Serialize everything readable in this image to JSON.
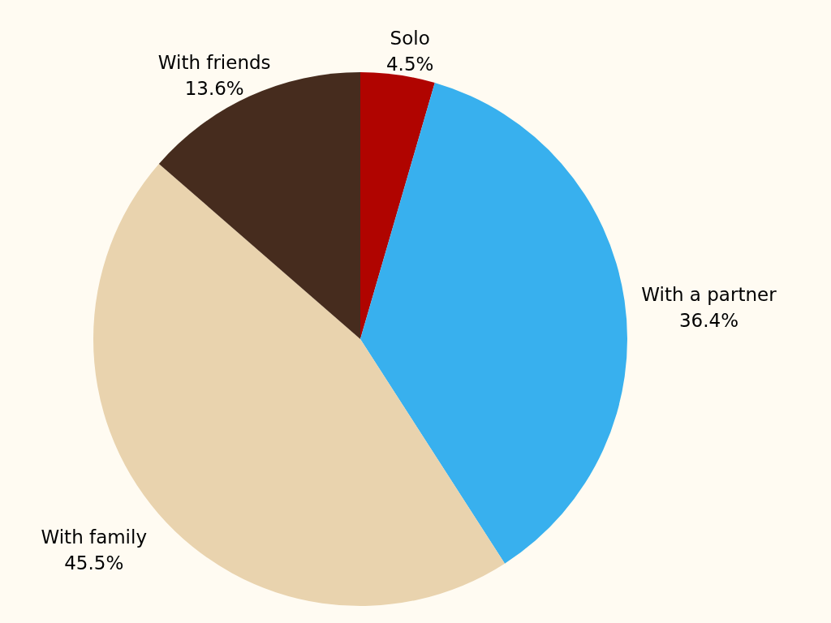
{
  "chart_data": {
    "type": "pie",
    "categories": [
      "Solo",
      "With a partner",
      "With family",
      "With friends"
    ],
    "values": [
      4.5,
      36.4,
      45.5,
      13.6
    ],
    "value_labels": [
      "4.5%",
      "36.4%",
      "45.5%",
      "13.6%"
    ],
    "colors": [
      "#b00400",
      "#38b0ee",
      "#e9d3ae",
      "#462c1e"
    ]
  }
}
